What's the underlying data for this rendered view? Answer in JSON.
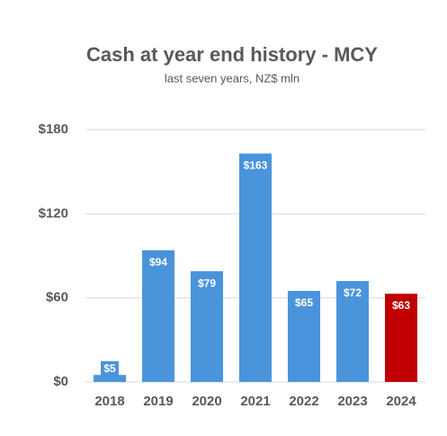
{
  "chart_data": {
    "type": "bar",
    "title": "Cash at year end history - MCY",
    "subtitle": "last seven years, NZ$ mln",
    "categories": [
      "2018",
      "2019",
      "2020",
      "2021",
      "2022",
      "2023",
      "2024"
    ],
    "values": [
      5,
      94,
      79,
      163,
      65,
      72,
      63
    ],
    "value_labels": [
      "$5",
      "$94",
      "$79",
      "$163",
      "$65",
      "$72",
      "$63"
    ],
    "colors": [
      "#4a94dc",
      "#4a94dc",
      "#4a94dc",
      "#4a94dc",
      "#4a94dc",
      "#4a94dc",
      "#c00000"
    ],
    "ylim": [
      0,
      180
    ],
    "yticks": [
      {
        "value": 0,
        "label": "$0"
      },
      {
        "value": 60,
        "label": "$60"
      },
      {
        "value": 120,
        "label": "$120"
      },
      {
        "value": 180,
        "label": "$180"
      }
    ],
    "grid": true
  }
}
